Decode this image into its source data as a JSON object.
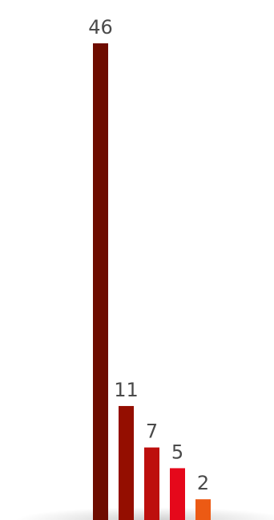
{
  "chart_data": {
    "type": "bar",
    "categories": [
      "",
      "",
      "",
      "",
      ""
    ],
    "values": [
      46,
      11,
      7,
      5,
      2
    ],
    "value_labels": [
      "46",
      "11",
      "7",
      "5",
      "2"
    ],
    "title": "",
    "xlabel": "",
    "ylabel": "",
    "ylim": [
      0,
      46
    ],
    "grid": false,
    "legend": "none",
    "colors": [
      "#6e0c00",
      "#940e00",
      "#bd0f0d",
      "#e5081b",
      "#ec5a14"
    ],
    "label_color": "#4a4a4a",
    "shadow_color": "#c8c8c8"
  }
}
